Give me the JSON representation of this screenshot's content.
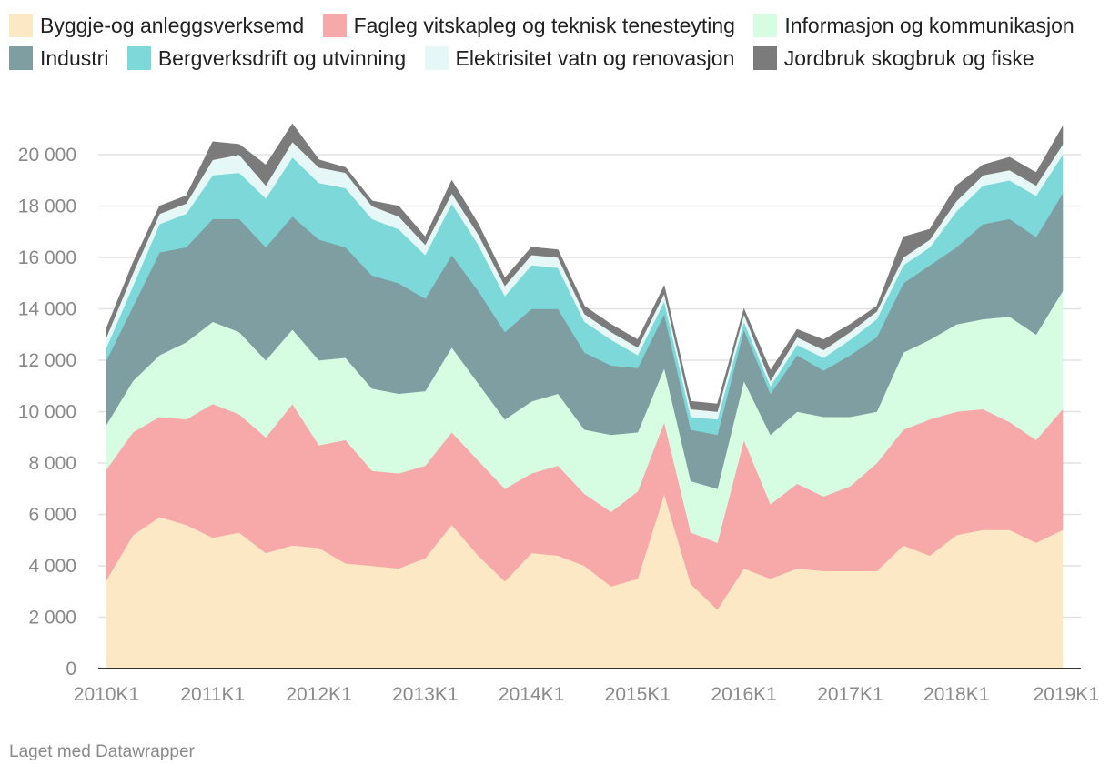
{
  "chart_data": {
    "type": "area",
    "stacked": true,
    "credit": "Laget med Datawrapper",
    "ylim": [
      0,
      21000
    ],
    "yticks": [
      0,
      2000,
      4000,
      6000,
      8000,
      10000,
      12000,
      14000,
      16000,
      18000,
      20000
    ],
    "ytick_labels": [
      "0",
      "2 000",
      "4 000",
      "6 000",
      "8 000",
      "10 000",
      "12 000",
      "14 000",
      "16 000",
      "18 000",
      "20 000"
    ],
    "xtick_labels": [
      "2010K1",
      "2011K1",
      "2012K1",
      "2013K1",
      "2014K1",
      "2015K1",
      "2016K1",
      "2017K1",
      "2018K1",
      "2019K1"
    ],
    "xtick_index": [
      0,
      4,
      8,
      12,
      16,
      20,
      24,
      28,
      32,
      36
    ],
    "x": [
      "2010K1",
      "2010K2",
      "2010K3",
      "2010K4",
      "2011K1",
      "2011K2",
      "2011K3",
      "2011K4",
      "2012K1",
      "2012K2",
      "2012K3",
      "2012K4",
      "2013K1",
      "2013K2",
      "2013K3",
      "2013K4",
      "2014K1",
      "2014K2",
      "2014K3",
      "2014K4",
      "2015K1",
      "2015K2",
      "2015K3",
      "2015K4",
      "2016K1",
      "2016K2",
      "2016K3",
      "2016K4",
      "2017K1",
      "2017K2",
      "2017K3",
      "2017K4",
      "2018K1",
      "2018K2",
      "2018K3",
      "2018K4",
      "2019K1"
    ],
    "series": [
      {
        "name": "Byggje-og anleggsverksemd",
        "color": "#fce8c4",
        "values": [
          3450,
          5200,
          5900,
          5600,
          5100,
          5300,
          4500,
          4800,
          4700,
          4100,
          4000,
          3900,
          4300,
          5600,
          4400,
          3400,
          4500,
          4400,
          4000,
          3200,
          3500,
          6800,
          3300,
          2300,
          3900,
          3500,
          3900,
          3800,
          3800,
          3800,
          4800,
          4400,
          5200,
          5400,
          5400,
          4900,
          5400
        ]
      },
      {
        "name": "Fagleg vitskapleg og teknisk tenesteyting",
        "color": "#f7a8a8",
        "values": [
          4300,
          4000,
          3900,
          4100,
          5200,
          4600,
          4500,
          5500,
          4000,
          4800,
          3700,
          3700,
          3600,
          3600,
          3700,
          3600,
          3100,
          3500,
          2800,
          2900,
          3400,
          2800,
          2000,
          2600,
          5000,
          2900,
          3300,
          2900,
          3300,
          4200,
          4500,
          5300,
          4800,
          4700,
          4200,
          4000,
          4700
        ]
      },
      {
        "name": "Informasjon og kommunikasjon",
        "color": "#d6fde2",
        "values": [
          1750,
          2000,
          2400,
          3000,
          3200,
          3200,
          3000,
          2900,
          3300,
          3200,
          3200,
          3100,
          2900,
          3300,
          3000,
          2700,
          2800,
          2800,
          2500,
          3000,
          2300,
          2100,
          2000,
          2100,
          2300,
          2700,
          2800,
          3100,
          2700,
          2000,
          3000,
          3100,
          3400,
          3500,
          4100,
          4100,
          4600
        ]
      },
      {
        "name": "Industri",
        "color": "#7f9ea2",
        "values": [
          2500,
          2900,
          4000,
          3700,
          4000,
          4400,
          4400,
          4400,
          4700,
          4300,
          4400,
          4300,
          3600,
          3600,
          3600,
          3400,
          3600,
          3300,
          3000,
          2700,
          2500,
          2100,
          2000,
          2100,
          2000,
          1600,
          2200,
          1800,
          2400,
          2900,
          2700,
          2900,
          3000,
          3700,
          3800,
          3800,
          3800
        ]
      },
      {
        "name": "Bergverksdrift og utvinning",
        "color": "#7dd9d9",
        "values": [
          500,
          800,
          1100,
          1300,
          1700,
          1800,
          1900,
          2300,
          2200,
          2300,
          2200,
          2100,
          1700,
          2000,
          1800,
          1400,
          1700,
          1600,
          1200,
          1000,
          500,
          500,
          500,
          600,
          300,
          300,
          400,
          500,
          600,
          700,
          700,
          700,
          1400,
          1500,
          1500,
          1600,
          1500
        ]
      },
      {
        "name": "Elektrisitet vatn og renovasjon",
        "color": "#e6f7f7",
        "values": [
          400,
          500,
          400,
          400,
          600,
          700,
          500,
          600,
          600,
          600,
          500,
          500,
          400,
          400,
          400,
          400,
          400,
          400,
          300,
          300,
          300,
          300,
          300,
          300,
          300,
          200,
          300,
          300,
          300,
          300,
          300,
          300,
          400,
          400,
          400,
          400,
          400
        ]
      },
      {
        "name": "Jordbruk skogbruk og fiske",
        "color": "#7b7b7b",
        "values": [
          350,
          400,
          300,
          300,
          700,
          400,
          800,
          700,
          300,
          200,
          200,
          400,
          300,
          500,
          400,
          300,
          300,
          300,
          300,
          300,
          300,
          300,
          300,
          300,
          200,
          400,
          300,
          400,
          300,
          200,
          800,
          400,
          600,
          400,
          500,
          500,
          700
        ]
      }
    ]
  }
}
